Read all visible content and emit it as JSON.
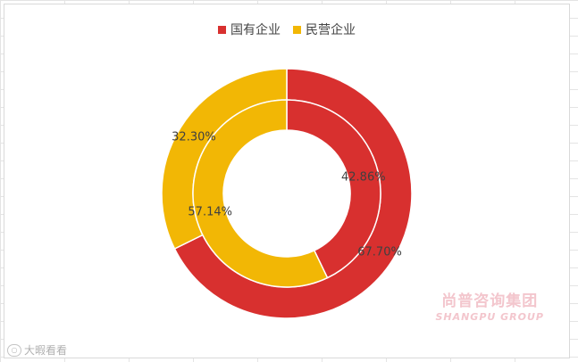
{
  "chart_data": {
    "type": "pie",
    "title": "",
    "legend_position": "top",
    "legend": [
      "国有企业",
      "民营企业"
    ],
    "colors": [
      "#d8302f",
      "#f2b705"
    ],
    "series": [
      {
        "ring": "outer",
        "categories": [
          "国有企业",
          "民营企业"
        ],
        "values": [
          67.7,
          32.3
        ],
        "labels": [
          "67.70%",
          "32.30%"
        ]
      },
      {
        "ring": "inner",
        "categories": [
          "国有企业",
          "民营企业"
        ],
        "values": [
          42.86,
          57.14
        ],
        "labels": [
          "42.86%",
          "57.14%"
        ]
      }
    ]
  },
  "watermark": {
    "cn": "尚普咨询集团",
    "en": "SHANGPU GROUP"
  },
  "source_tag": {
    "icon": "circle-logo-icon",
    "text": "大暇看看"
  }
}
